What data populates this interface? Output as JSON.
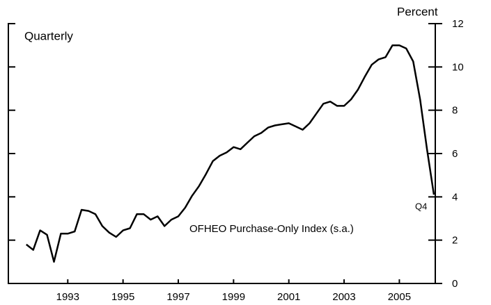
{
  "chart_data": {
    "type": "line",
    "y_axis_label": "Percent",
    "subtitle": "Quarterly",
    "annotation": "OFHEO Purchase-Only Index (s.a.)",
    "end_label": "Q4",
    "x": [
      1992,
      1992.25,
      1992.5,
      1992.75,
      1993,
      1993.25,
      1993.5,
      1993.75,
      1994,
      1994.25,
      1994.5,
      1994.75,
      1995,
      1995.25,
      1995.5,
      1995.75,
      1996,
      1996.25,
      1996.5,
      1996.75,
      1997,
      1997.25,
      1997.5,
      1997.75,
      1998,
      1998.25,
      1998.5,
      1998.75,
      1999,
      1999.25,
      1999.5,
      1999.75,
      2000,
      2000.25,
      2000.5,
      2000.75,
      2001,
      2001.25,
      2001.5,
      2001.75,
      2002,
      2002.25,
      2002.5,
      2002.75,
      2003,
      2003.25,
      2003.5,
      2003.75,
      2004,
      2004.25,
      2004.5,
      2004.75,
      2005,
      2005.25,
      2005.5,
      2005.75,
      2006,
      2006.25,
      2006.5,
      2006.75
    ],
    "values": [
      1.8,
      1.55,
      2.45,
      2.25,
      1.0,
      2.3,
      2.3,
      2.4,
      3.4,
      3.35,
      3.2,
      2.65,
      2.35,
      2.15,
      2.45,
      2.55,
      3.2,
      3.2,
      2.95,
      3.1,
      2.65,
      2.95,
      3.1,
      3.5,
      4.05,
      4.5,
      5.05,
      5.65,
      5.9,
      6.05,
      6.3,
      6.2,
      6.5,
      6.8,
      6.95,
      7.2,
      7.3,
      7.35,
      7.4,
      7.25,
      7.1,
      7.4,
      7.85,
      8.3,
      8.4,
      8.2,
      8.2,
      8.5,
      8.95,
      9.55,
      10.1,
      10.35,
      10.45,
      11.0,
      11.0,
      10.85,
      10.25,
      8.5,
      6.2,
      4.1
    ],
    "color": "#000000",
    "xlim": [
      1991.35,
      2006.8
    ],
    "xticks": [
      {
        "value": 1993.5,
        "label": "1993"
      },
      {
        "value": 1995.5,
        "label": "1995"
      },
      {
        "value": 1997.5,
        "label": "1997"
      },
      {
        "value": 1999.5,
        "label": "1999"
      },
      {
        "value": 2001.5,
        "label": "2001"
      },
      {
        "value": 2003.5,
        "label": "2003"
      },
      {
        "value": 2005.5,
        "label": "2005"
      }
    ],
    "ylim": [
      0,
      12
    ],
    "yticks": [
      0,
      2,
      4,
      6,
      8,
      10,
      12
    ]
  }
}
